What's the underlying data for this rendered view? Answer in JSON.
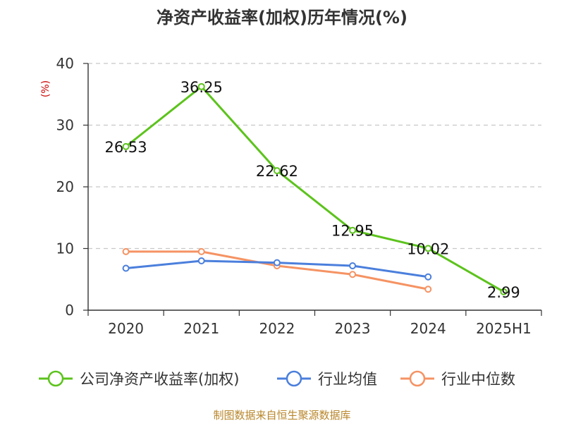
{
  "colors": {
    "company": "#5cc31c",
    "industry_avg": "#4b7fdc",
    "industry_median": "#f59363",
    "unit": "#cc0000",
    "source": "#b8862b"
  },
  "chart_data": {
    "type": "line",
    "title": "净资产收益率(加权)历年情况(%)",
    "ylabel": "(%)",
    "xlabel": "",
    "categories": [
      "2020",
      "2021",
      "2022",
      "2023",
      "2024",
      "2025H1"
    ],
    "ylim": [
      0,
      40
    ],
    "yticks": [
      0,
      10,
      20,
      30,
      40
    ],
    "grid": true,
    "legend_position": "bottom",
    "series": [
      {
        "name": "公司净资产收益率(加权)",
        "key": "company",
        "values": [
          26.53,
          36.25,
          22.62,
          12.95,
          10.02,
          2.99
        ],
        "labels": [
          "26.53",
          "36.25",
          "22.62",
          "12.95",
          "10.02",
          "2.99"
        ]
      },
      {
        "name": "行业均值",
        "key": "industry_avg",
        "values": [
          6.8,
          8.0,
          7.7,
          7.2,
          5.4,
          null
        ]
      },
      {
        "name": "行业中位数",
        "key": "industry_median",
        "values": [
          9.5,
          9.5,
          7.2,
          5.8,
          3.4,
          null
        ]
      }
    ],
    "source": "制图数据来自恒生聚源数据库"
  }
}
